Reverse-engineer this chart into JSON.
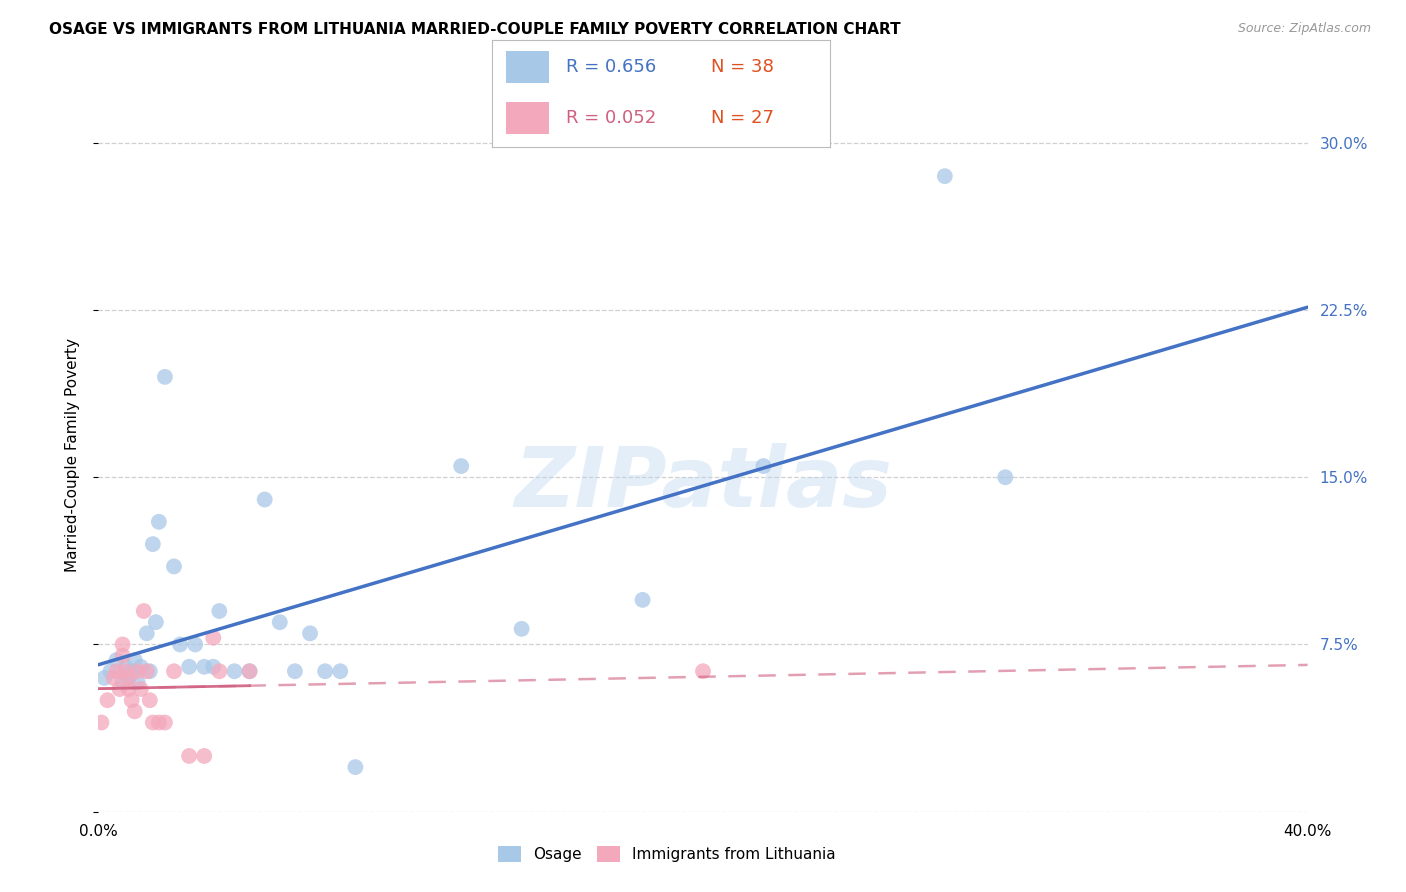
{
  "title": "OSAGE VS IMMIGRANTS FROM LITHUANIA MARRIED-COUPLE FAMILY POVERTY CORRELATION CHART",
  "source": "Source: ZipAtlas.com",
  "ylabel": "Married-Couple Family Poverty",
  "xlim": [
    0.0,
    0.4
  ],
  "ylim": [
    0.0,
    0.32
  ],
  "ytick_positions": [
    0.0,
    0.075,
    0.15,
    0.225,
    0.3
  ],
  "ytick_labels": [
    "",
    "7.5%",
    "15.0%",
    "22.5%",
    "30.0%"
  ],
  "xtick_positions": [
    0.0,
    0.05,
    0.1,
    0.15,
    0.2,
    0.25,
    0.3,
    0.35,
    0.4
  ],
  "osage_color": "#a8c8e8",
  "lithuania_color": "#f4a8bc",
  "osage_line_color": "#4472c4",
  "lithuania_line_color": "#d06080",
  "R_osage": 0.656,
  "N_osage": 38,
  "R_lithuania": 0.052,
  "N_lithuania": 27,
  "watermark": "ZIPatlas",
  "background_color": "#ffffff",
  "grid_color": "#d0d0d0",
  "title_fontsize": 11,
  "tick_label_fontsize": 11,
  "legend_fontsize": 13,
  "osage_x": [
    0.002,
    0.004,
    0.006,
    0.008,
    0.009,
    0.01,
    0.011,
    0.012,
    0.013,
    0.014,
    0.016,
    0.017,
    0.018,
    0.019,
    0.02,
    0.022,
    0.025,
    0.027,
    0.03,
    0.032,
    0.035,
    0.038,
    0.04,
    0.045,
    0.05,
    0.055,
    0.06,
    0.065,
    0.07,
    0.075,
    0.08,
    0.085,
    0.12,
    0.14,
    0.18,
    0.22,
    0.28,
    0.3
  ],
  "osage_y": [
    0.06,
    0.063,
    0.068,
    0.058,
    0.065,
    0.06,
    0.063,
    0.068,
    0.058,
    0.065,
    0.08,
    0.063,
    0.12,
    0.085,
    0.13,
    0.195,
    0.11,
    0.075,
    0.065,
    0.075,
    0.065,
    0.065,
    0.09,
    0.063,
    0.063,
    0.14,
    0.085,
    0.063,
    0.08,
    0.063,
    0.063,
    0.02,
    0.155,
    0.082,
    0.095,
    0.155,
    0.285,
    0.15
  ],
  "lithuania_x": [
    0.001,
    0.003,
    0.005,
    0.006,
    0.007,
    0.008,
    0.008,
    0.009,
    0.01,
    0.01,
    0.011,
    0.012,
    0.013,
    0.014,
    0.015,
    0.016,
    0.017,
    0.018,
    0.02,
    0.022,
    0.025,
    0.03,
    0.035,
    0.038,
    0.04,
    0.05,
    0.2
  ],
  "lithuania_y": [
    0.04,
    0.05,
    0.06,
    0.063,
    0.055,
    0.07,
    0.075,
    0.063,
    0.06,
    0.055,
    0.05,
    0.045,
    0.063,
    0.055,
    0.09,
    0.063,
    0.05,
    0.04,
    0.04,
    0.04,
    0.063,
    0.025,
    0.025,
    0.078,
    0.063,
    0.063,
    0.063
  ]
}
